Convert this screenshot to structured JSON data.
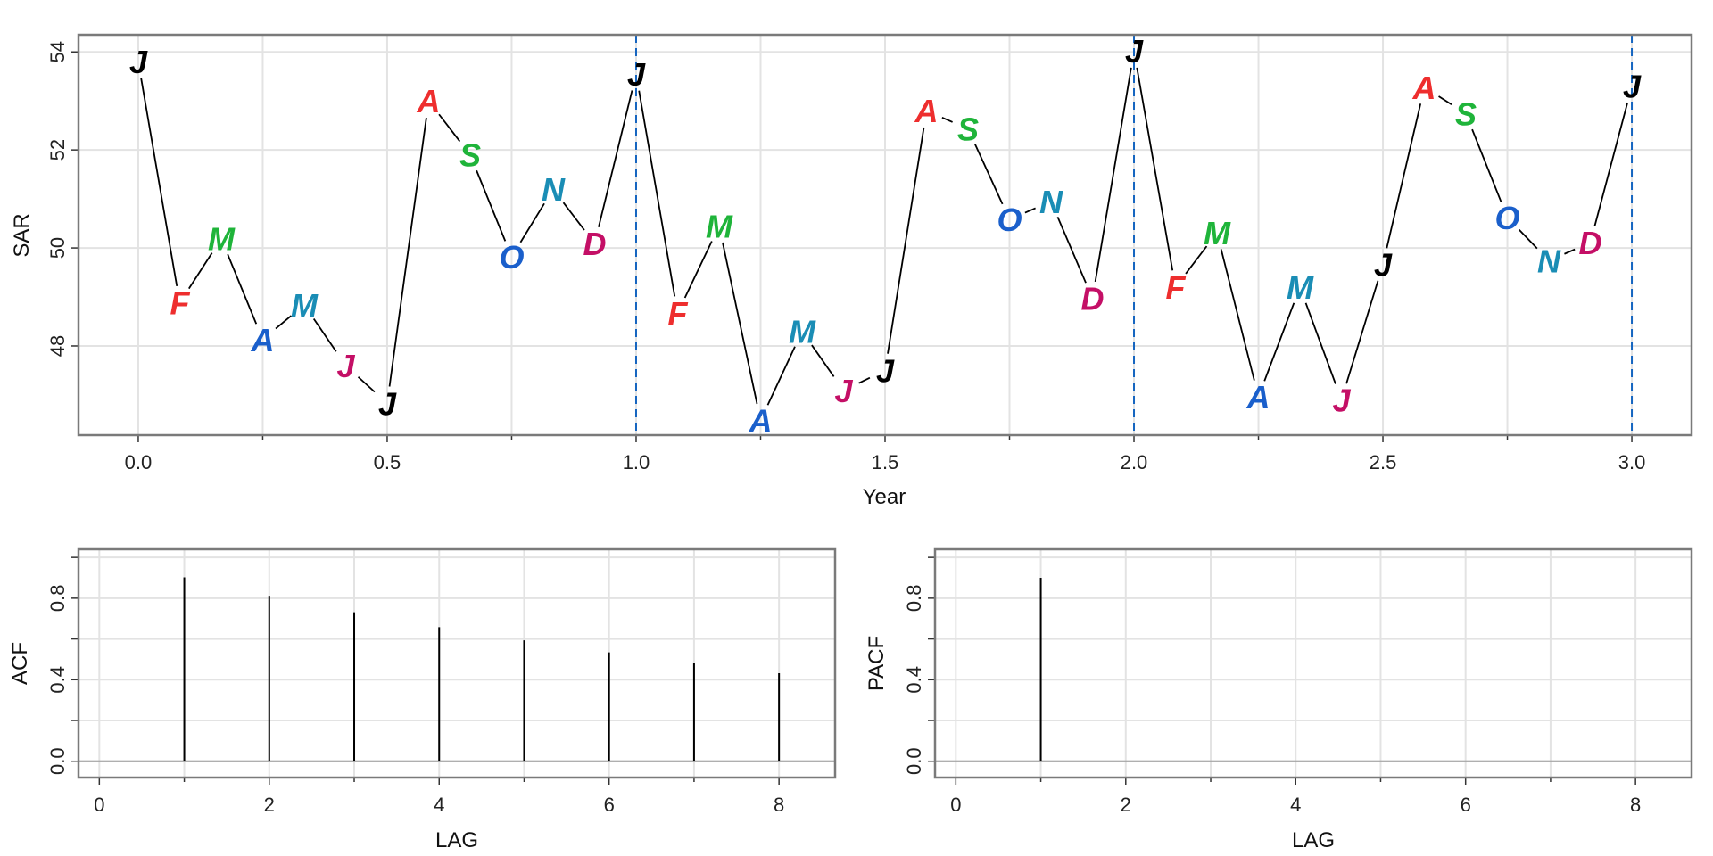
{
  "chart_data": [
    {
      "type": "line",
      "xlabel": "Year",
      "ylabel": "SAR",
      "xlim": [
        -0.12,
        3.12
      ],
      "ylim": [
        46.18,
        54.35
      ],
      "xticks": [
        0.0,
        0.5,
        1.0,
        1.5,
        2.0,
        2.5,
        3.0
      ],
      "xtick_labels": [
        "0.0",
        "0.5",
        "1.0",
        "1.5",
        "2.0",
        "2.5",
        "3.0"
      ],
      "xminor": [
        0.25,
        0.75,
        1.25,
        1.75,
        2.25,
        2.75
      ],
      "yticks": [
        48,
        50,
        52,
        54
      ],
      "ytick_labels": [
        "48",
        "50",
        "52",
        "54"
      ],
      "grid": true,
      "vlines": [
        1,
        2,
        3
      ],
      "vline_color": "#1565C0",
      "month_colors": [
        "#000000",
        "#EE2E2E",
        "#1FB43A",
        "#1A5FCB",
        "#1A8DB5",
        "#C40F66"
      ],
      "x_step": 0.0833333,
      "labels": [
        "J",
        "F",
        "M",
        "A",
        "M",
        "J",
        "J",
        "A",
        "S",
        "O",
        "N",
        "D",
        "J",
        "F",
        "M",
        "A",
        "M",
        "J",
        "J",
        "A",
        "S",
        "O",
        "N",
        "D",
        "J",
        "F",
        "M",
        "A",
        "M",
        "J",
        "J",
        "A",
        "S",
        "O",
        "N",
        "D",
        "J"
      ],
      "values": [
        53.8,
        48.88,
        50.19,
        48.13,
        48.84,
        47.6,
        46.83,
        53.0,
        51.9,
        49.82,
        51.2,
        50.09,
        53.55,
        48.67,
        50.45,
        46.48,
        48.3,
        47.09,
        47.5,
        52.8,
        52.43,
        50.58,
        50.95,
        48.97,
        54.02,
        49.2,
        50.31,
        46.96,
        49.2,
        46.9,
        49.66,
        53.28,
        52.74,
        50.62,
        49.74,
        50.11,
        53.3
      ]
    },
    {
      "type": "bar",
      "xlabel": "LAG",
      "ylabel": "ACF",
      "xlim": [
        -0.245,
        8.66
      ],
      "ylim": [
        -0.08,
        1.04
      ],
      "xticks": [
        0,
        2,
        4,
        6,
        8
      ],
      "xtick_labels": [
        "0",
        "2",
        "4",
        "6",
        "8"
      ],
      "yticks": [
        0.0,
        0.4,
        0.8
      ],
      "ytick_labels": [
        "0.0",
        "0.4",
        "0.8"
      ],
      "grid": true,
      "lags": [
        1,
        2,
        3,
        4,
        5,
        6,
        7,
        8
      ],
      "values": [
        0.902,
        0.812,
        0.731,
        0.658,
        0.593,
        0.534,
        0.482,
        0.432
      ]
    },
    {
      "type": "bar",
      "xlabel": "LAG",
      "ylabel": "PACF",
      "xlim": [
        -0.245,
        8.66
      ],
      "ylim": [
        -0.08,
        1.04
      ],
      "xticks": [
        0,
        2,
        4,
        6,
        8
      ],
      "xtick_labels": [
        "0",
        "2",
        "4",
        "6",
        "8"
      ],
      "yticks": [
        0.0,
        0.4,
        0.8
      ],
      "ytick_labels": [
        "0.0",
        "0.4",
        "0.8"
      ],
      "grid": true,
      "lags": [
        1,
        2,
        3,
        4,
        5,
        6,
        7,
        8
      ],
      "values": [
        0.9,
        0.0,
        0.0,
        0.0,
        0.0,
        0.0,
        0.0,
        0.0
      ]
    }
  ]
}
